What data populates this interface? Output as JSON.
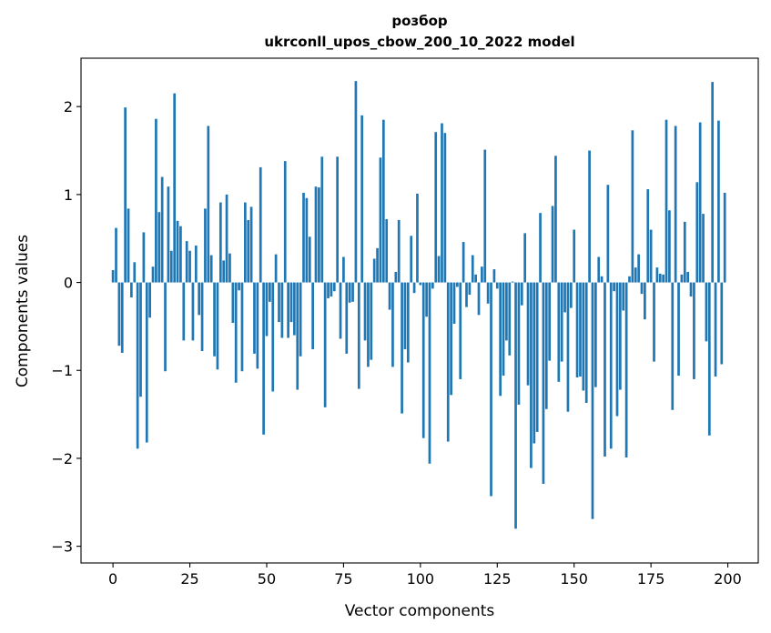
{
  "chart_data": {
    "type": "bar",
    "title_line1": "розбор",
    "title_line2": "ukrconll_upos_cbow_200_10_2022 model",
    "xlabel": "Vector components",
    "ylabel": "Components values",
    "xlim": [
      -10.4,
      209.9
    ],
    "ylim": [
      -3.19,
      2.55
    ],
    "xticks": [
      0,
      25,
      50,
      75,
      100,
      125,
      150,
      175,
      200
    ],
    "xtick_labels": [
      "0",
      "25",
      "50",
      "75",
      "100",
      "125",
      "150",
      "175",
      "200"
    ],
    "yticks": [
      -3,
      -2,
      -1,
      0,
      1,
      2
    ],
    "ytick_labels": [
      "−3",
      "−2",
      "−1",
      "0",
      "1",
      "2"
    ],
    "grid": false,
    "bar_color": "#1f77b4",
    "values": [
      0.14,
      0.62,
      -0.72,
      -0.8,
      1.99,
      0.84,
      -0.17,
      0.23,
      -1.89,
      -1.3,
      0.57,
      -1.82,
      -0.4,
      0.18,
      1.86,
      0.8,
      1.2,
      -1.01,
      1.09,
      0.36,
      2.15,
      0.7,
      0.64,
      -0.66,
      0.47,
      0.36,
      -0.66,
      0.42,
      -0.37,
      -0.78,
      0.84,
      1.78,
      0.31,
      -0.84,
      -0.99,
      0.91,
      0.25,
      1.0,
      0.33,
      -0.46,
      -1.14,
      -0.09,
      -1.01,
      0.91,
      0.71,
      0.86,
      -0.81,
      -0.98,
      1.31,
      -1.73,
      -0.61,
      -0.22,
      -1.24,
      0.32,
      -0.45,
      -0.63,
      1.38,
      -0.63,
      -0.45,
      -0.6,
      -1.22,
      -0.84,
      1.02,
      0.96,
      0.52,
      -0.76,
      1.09,
      1.08,
      1.43,
      -1.42,
      -0.18,
      -0.16,
      -0.1,
      1.43,
      -0.64,
      0.29,
      -0.81,
      -0.23,
      -0.22,
      2.29,
      -1.21,
      1.9,
      -0.66,
      -0.96,
      -0.88,
      0.27,
      0.39,
      1.42,
      1.85,
      0.72,
      -0.31,
      -0.96,
      0.12,
      0.71,
      -1.49,
      -0.76,
      -0.91,
      0.53,
      -0.12,
      1.01,
      -0.03,
      -1.77,
      -0.39,
      -2.06,
      -0.07,
      1.71,
      0.3,
      1.81,
      1.7,
      -1.81,
      -1.28,
      -0.47,
      -0.05,
      -1.1,
      0.46,
      -0.28,
      -0.14,
      0.31,
      0.09,
      -0.37,
      0.18,
      1.51,
      -0.24,
      -2.43,
      0.15,
      -0.07,
      -1.29,
      -1.06,
      -0.66,
      -0.83,
      0.01,
      -2.8,
      -1.39,
      -0.26,
      0.56,
      -1.17,
      -2.11,
      -1.83,
      -1.7,
      0.79,
      -2.29,
      -1.44,
      -0.89,
      0.87,
      1.44,
      -1.13,
      -0.9,
      -0.34,
      -1.47,
      -0.29,
      0.6,
      -1.08,
      -1.07,
      -1.23,
      -1.37,
      1.5,
      -2.69,
      -1.19,
      0.29,
      0.07,
      -1.98,
      1.11,
      -1.89,
      -0.1,
      -1.52,
      -1.22,
      -0.32,
      -1.99,
      0.07,
      1.73,
      0.17,
      0.32,
      -0.13,
      -0.42,
      1.06,
      0.6,
      -0.9,
      0.17,
      0.1,
      0.09,
      1.85,
      0.82,
      -1.45,
      1.78,
      -1.06,
      0.09,
      0.69,
      0.12,
      -0.16,
      -1.1,
      1.14,
      1.82,
      0.78,
      -0.67,
      -1.74,
      2.28,
      -1.07,
      1.84,
      -0.93,
      1.02
    ]
  }
}
